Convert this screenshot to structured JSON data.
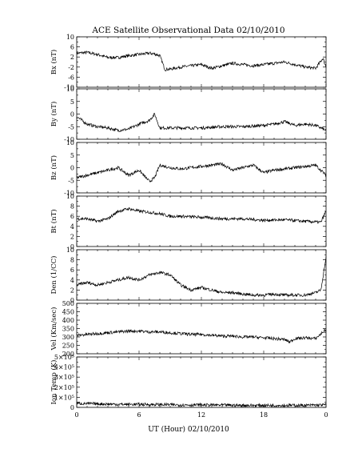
{
  "figure": {
    "title": "ACE Satellite Observational Data   02/10/2010",
    "xlabel": "UT (Hour)   02/10/2010"
  },
  "chart_data": [
    {
      "type": "line",
      "ylabel": "Bx (nT)",
      "x_ticks": [
        "0",
        "6",
        "12",
        "18",
        "0"
      ],
      "xlim": [
        0,
        24
      ],
      "ylim": [
        -10,
        10
      ],
      "y_ticks": [
        "10",
        "6",
        "2",
        "-2",
        "-6",
        "-10"
      ],
      "y_tick_values": [
        10,
        6,
        2,
        -2,
        -6,
        -10
      ],
      "series": [
        {
          "x": [
            0,
            1,
            2,
            3,
            4,
            5,
            6,
            7,
            7.5,
            8,
            8.5,
            9,
            10,
            11,
            12,
            13,
            14,
            15,
            16,
            17,
            18,
            19,
            20,
            21,
            22,
            23,
            23.7,
            24
          ],
          "values": [
            3.5,
            3.8,
            3.0,
            1.8,
            1.8,
            2.5,
            3.0,
            3.5,
            3.2,
            2.5,
            -3.0,
            -2.8,
            -2.0,
            -1.5,
            -1.0,
            -2.5,
            -1.5,
            -0.5,
            -1.0,
            -1.5,
            -1.0,
            -0.5,
            0.0,
            -1.0,
            -2.0,
            -2.5,
            1.5,
            -2.0
          ]
        }
      ]
    },
    {
      "type": "line",
      "ylabel": "By (nT)",
      "x_ticks": [
        "0",
        "6",
        "12",
        "18",
        "0"
      ],
      "xlim": [
        0,
        24
      ],
      "ylim": [
        -10,
        10
      ],
      "y_ticks": [
        "10",
        "5",
        "0",
        "-5",
        "-10"
      ],
      "y_tick_values": [
        10,
        5,
        0,
        -5,
        -10
      ],
      "series": [
        {
          "x": [
            0,
            1,
            2,
            3,
            4,
            5,
            6,
            7,
            7.5,
            8,
            9,
            10,
            12,
            14,
            16,
            18,
            19,
            20,
            21,
            22,
            23,
            24
          ],
          "values": [
            -1.0,
            -4.0,
            -5.0,
            -5.5,
            -6.5,
            -6.0,
            -4.0,
            -2.5,
            0.0,
            -5.5,
            -5.5,
            -5.5,
            -5.5,
            -5.0,
            -5.0,
            -4.5,
            -4.0,
            -3.0,
            -4.5,
            -4.0,
            -4.5,
            -6.5
          ]
        }
      ]
    },
    {
      "type": "line",
      "ylabel": "Bz (nT)",
      "x_ticks": [
        "0",
        "6",
        "12",
        "18",
        "0"
      ],
      "xlim": [
        0,
        24
      ],
      "ylim": [
        -10,
        10
      ],
      "y_ticks": [
        "10",
        "5",
        "0",
        "-5",
        "-10"
      ],
      "y_tick_values": [
        10,
        5,
        0,
        -5,
        -10
      ],
      "series": [
        {
          "x": [
            0,
            1,
            2,
            3,
            4,
            5,
            6,
            7,
            7.5,
            8,
            9,
            10,
            11,
            12,
            13,
            14,
            15,
            16,
            17,
            18,
            19,
            20,
            21,
            22,
            23,
            24
          ],
          "values": [
            -4.0,
            -3.0,
            -2.0,
            -1.0,
            0.0,
            -3.0,
            -1.0,
            -5.5,
            -4.0,
            1.0,
            0.0,
            -0.5,
            0.0,
            0.5,
            1.0,
            1.5,
            -1.0,
            0.0,
            1.0,
            -2.0,
            -1.0,
            -0.5,
            0.0,
            0.5,
            1.0,
            -3.0
          ]
        }
      ]
    },
    {
      "type": "line",
      "ylabel": "Bt (nT)",
      "x_ticks": [
        "0",
        "6",
        "12",
        "18",
        "0"
      ],
      "xlim": [
        0,
        24
      ],
      "ylim": [
        0,
        10
      ],
      "y_ticks": [
        "10",
        "8",
        "6",
        "4",
        "2",
        "0"
      ],
      "y_tick_values": [
        10,
        8,
        6,
        4,
        2,
        0
      ],
      "series": [
        {
          "x": [
            0,
            1,
            2,
            3,
            4,
            5,
            6,
            7,
            8,
            9,
            10,
            12,
            14,
            16,
            18,
            20,
            22,
            23.5,
            24
          ],
          "values": [
            5.5,
            5.5,
            5.0,
            5.5,
            7.0,
            7.5,
            7.0,
            6.8,
            6.5,
            6.0,
            6.0,
            5.8,
            5.5,
            5.5,
            5.2,
            5.3,
            5.0,
            4.8,
            7.0
          ]
        }
      ]
    },
    {
      "type": "line",
      "ylabel": "Den (1/CC)",
      "x_ticks": [
        "0",
        "6",
        "12",
        "18",
        "0"
      ],
      "xlim": [
        0,
        24
      ],
      "ylim": [
        0,
        10
      ],
      "y_ticks": [
        "10",
        "8",
        "6",
        "4",
        "2",
        "0"
      ],
      "y_tick_values": [
        10,
        8,
        6,
        4,
        2,
        0
      ],
      "series": [
        {
          "x": [
            0,
            1,
            2,
            3,
            4,
            5,
            6,
            7,
            8,
            9,
            10,
            11,
            12,
            13,
            14,
            15,
            16,
            17,
            18,
            19,
            20,
            21,
            22,
            23,
            23.5,
            24
          ],
          "values": [
            3.0,
            3.5,
            3.0,
            3.5,
            4.0,
            4.5,
            4.0,
            5.0,
            5.5,
            5.0,
            3.0,
            2.0,
            2.5,
            2.0,
            1.5,
            1.5,
            1.2,
            1.0,
            1.0,
            1.2,
            1.0,
            1.0,
            1.0,
            1.5,
            2.0,
            8.5
          ]
        }
      ]
    },
    {
      "type": "line",
      "ylabel": "Vel (Km/sec)",
      "x_ticks": [
        "0",
        "6",
        "12",
        "18",
        "0"
      ],
      "xlim": [
        0,
        24
      ],
      "ylim": [
        200,
        500
      ],
      "y_ticks": [
        "500",
        "450",
        "400",
        "350",
        "300",
        "250",
        "200"
      ],
      "y_tick_values": [
        500,
        450,
        400,
        350,
        300,
        250,
        200
      ],
      "series": [
        {
          "x": [
            0,
            1,
            2,
            3,
            4,
            5,
            6,
            7,
            8,
            9,
            10,
            11,
            12,
            13,
            14,
            15,
            16,
            17,
            18,
            19,
            20,
            20.5,
            21,
            22,
            23,
            24
          ],
          "values": [
            310,
            315,
            320,
            325,
            330,
            335,
            335,
            330,
            330,
            325,
            320,
            315,
            315,
            310,
            305,
            305,
            300,
            300,
            295,
            290,
            285,
            270,
            290,
            295,
            290,
            345
          ]
        }
      ]
    },
    {
      "type": "line",
      "ylabel": "Ion Temp (K)",
      "x_ticks": [
        "0",
        "6",
        "12",
        "18",
        "0"
      ],
      "xlim": [
        0,
        24
      ],
      "ylim": [
        0,
        500000
      ],
      "y_ticks": [
        "5×10⁵",
        "4×10⁵",
        "3×10⁵",
        "2×10⁵",
        "1×10⁵",
        "0"
      ],
      "y_tick_values": [
        500000,
        400000,
        300000,
        200000,
        100000,
        0
      ],
      "series": [
        {
          "x": [
            0,
            2,
            4,
            6,
            8,
            10,
            12,
            14,
            16,
            18,
            20,
            22,
            24
          ],
          "values": [
            40000,
            35000,
            30000,
            30000,
            28000,
            25000,
            25000,
            22000,
            20000,
            20000,
            20000,
            20000,
            25000
          ]
        }
      ]
    }
  ]
}
